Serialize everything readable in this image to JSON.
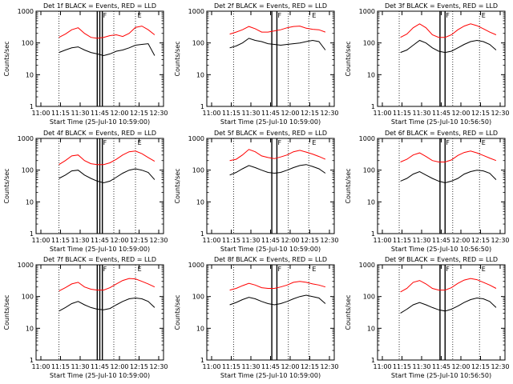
{
  "chart_data": [
    {
      "type": "line",
      "title": "Det 1f BLACK = Events, RED = LLD",
      "xlabel": "Start Time (25-Jul-10 10:59:00)",
      "ylabel": "Counts/sec",
      "yscale": "log",
      "ylim": [
        1,
        1000
      ],
      "x_ticks": [
        "11:00",
        "11:15",
        "11:30",
        "11:45",
        "12:00",
        "12:15",
        "12:30"
      ],
      "y_ticks": [
        "1",
        "10",
        "100",
        "1000"
      ],
      "dotted_vlines": [
        [
          0.18
        ],
        [
          0.61
        ],
        [
          0.78
        ]
      ],
      "solid_vlines": [
        [
          0.48
        ],
        [
          0.5
        ],
        [
          0.52
        ]
      ],
      "markers": [
        {
          "label": "F",
          "pos": 0.52
        },
        {
          "label": "E",
          "pos": 0.79
        }
      ],
      "series": [
        {
          "color": "#ff0000",
          "values": [
            150,
            190,
            260,
            300,
            200,
            150,
            140,
            150,
            170,
            180,
            160,
            200,
            310,
            340,
            260,
            180
          ]
        },
        {
          "color": "#000000",
          "values": [
            50,
            60,
            70,
            75,
            60,
            50,
            45,
            40,
            45,
            55,
            60,
            70,
            85,
            90,
            95,
            40
          ]
        }
      ]
    },
    {
      "type": "line",
      "title": "Det 2f BLACK = Events, RED = LLD",
      "xlabel": "Start Time (25-Jul-10 10:59:00)",
      "ylabel": "Counts/sec",
      "yscale": "log",
      "ylim": [
        1,
        1000
      ],
      "x_ticks": [
        "11:00",
        "11:15",
        "11:30",
        "11:45",
        "12:00",
        "12:15",
        "12:30"
      ],
      "y_ticks": [
        "1",
        "10",
        "100",
        "1000"
      ],
      "dotted_vlines": [
        [
          0.21
        ],
        [
          0.64
        ],
        [
          0.8
        ]
      ],
      "solid_vlines": [
        [
          0.51
        ],
        [
          0.55
        ]
      ],
      "markers": [
        {
          "label": "F",
          "pos": 0.55
        },
        {
          "label": "E",
          "pos": 0.82
        }
      ],
      "series": [
        {
          "color": "#ff0000",
          "values": [
            190,
            220,
            260,
            330,
            280,
            220,
            220,
            240,
            260,
            300,
            330,
            340,
            290,
            270,
            260,
            220
          ]
        },
        {
          "color": "#000000",
          "values": [
            70,
            80,
            100,
            140,
            120,
            110,
            95,
            90,
            85,
            90,
            95,
            100,
            110,
            120,
            110,
            60
          ]
        }
      ]
    },
    {
      "type": "line",
      "title": "Det 3f BLACK = Events, RED = LLD",
      "xlabel": "Start Time (25-Jul-10 10:56:50)",
      "ylabel": "Counts/sec",
      "yscale": "log",
      "ylim": [
        1,
        1000
      ],
      "x_ticks": [
        "11:00",
        "11:15",
        "11:30",
        "11:45",
        "12:00",
        "12:15",
        "12:30"
      ],
      "y_ticks": [
        "1",
        "10",
        "100",
        "1000"
      ],
      "dotted_vlines": [
        [
          0.17
        ],
        [
          0.59
        ],
        [
          0.8
        ]
      ],
      "solid_vlines": [
        [
          0.49
        ],
        [
          0.53
        ]
      ],
      "markers": [
        {
          "label": "F",
          "pos": 0.53
        },
        {
          "label": "E",
          "pos": 0.81
        }
      ],
      "series": [
        {
          "color": "#ff0000",
          "values": [
            150,
            190,
            300,
            400,
            300,
            180,
            150,
            150,
            180,
            260,
            340,
            400,
            350,
            280,
            220,
            180
          ]
        },
        {
          "color": "#000000",
          "values": [
            50,
            60,
            85,
            120,
            100,
            70,
            55,
            50,
            55,
            70,
            90,
            110,
            120,
            110,
            90,
            60
          ]
        }
      ]
    },
    {
      "type": "line",
      "title": "Det 4f BLACK = Events, RED = LLD",
      "xlabel": "Start Time (25-Jul-10 10:59:00)",
      "ylabel": "Counts/sec",
      "yscale": "log",
      "ylim": [
        1,
        1000
      ],
      "x_ticks": [
        "11:00",
        "11:15",
        "11:30",
        "11:45",
        "12:00",
        "12:15",
        "12:30"
      ],
      "y_ticks": [
        "1",
        "10",
        "100",
        "1000"
      ],
      "dotted_vlines": [
        [
          0.18
        ],
        [
          0.61
        ],
        [
          0.78
        ]
      ],
      "solid_vlines": [
        [
          0.48
        ],
        [
          0.5
        ],
        [
          0.52
        ]
      ],
      "markers": [
        {
          "label": "F",
          "pos": 0.52
        },
        {
          "label": "E",
          "pos": 0.79
        }
      ],
      "series": [
        {
          "color": "#ff0000",
          "values": [
            150,
            200,
            280,
            300,
            200,
            160,
            150,
            150,
            170,
            220,
            300,
            380,
            400,
            330,
            250,
            190
          ]
        },
        {
          "color": "#000000",
          "values": [
            55,
            70,
            95,
            100,
            70,
            55,
            45,
            40,
            45,
            60,
            80,
            100,
            110,
            100,
            85,
            50
          ]
        }
      ]
    },
    {
      "type": "line",
      "title": "Det 5f BLACK = Events, RED = LLD",
      "xlabel": "Start Time (25-Jul-10 10:59:00)",
      "ylabel": "Counts/sec",
      "yscale": "log",
      "ylim": [
        1,
        1000
      ],
      "x_ticks": [
        "11:00",
        "11:15",
        "11:30",
        "11:45",
        "12:00",
        "12:15",
        "12:30"
      ],
      "y_ticks": [
        "1",
        "10",
        "100",
        "1000"
      ],
      "dotted_vlines": [
        [
          0.21
        ],
        [
          0.64
        ],
        [
          0.8
        ]
      ],
      "solid_vlines": [
        [
          0.51
        ],
        [
          0.55
        ]
      ],
      "markers": [
        {
          "label": "F",
          "pos": 0.55
        },
        {
          "label": "E",
          "pos": 0.82
        }
      ],
      "series": [
        {
          "color": "#ff0000",
          "values": [
            200,
            220,
            300,
            450,
            380,
            280,
            250,
            230,
            260,
            300,
            380,
            420,
            370,
            320,
            270,
            220
          ]
        },
        {
          "color": "#000000",
          "values": [
            70,
            85,
            110,
            140,
            120,
            100,
            85,
            80,
            85,
            100,
            120,
            140,
            150,
            130,
            110,
            80
          ]
        }
      ]
    },
    {
      "type": "line",
      "title": "Det 6f BLACK = Events, RED = LLD",
      "xlabel": "Start Time (25-Jul-10 10:56:50)",
      "ylabel": "Counts/sec",
      "yscale": "log",
      "ylim": [
        1,
        1000
      ],
      "x_ticks": [
        "11:00",
        "11:15",
        "11:30",
        "11:45",
        "12:00",
        "12:15",
        "12:30"
      ],
      "y_ticks": [
        "1",
        "10",
        "100",
        "1000"
      ],
      "dotted_vlines": [
        [
          0.17
        ],
        [
          0.59
        ],
        [
          0.8
        ]
      ],
      "solid_vlines": [
        [
          0.49
        ],
        [
          0.53
        ]
      ],
      "markers": [
        {
          "label": "F",
          "pos": 0.53
        },
        {
          "label": "E",
          "pos": 0.81
        }
      ],
      "series": [
        {
          "color": "#ff0000",
          "values": [
            180,
            220,
            300,
            350,
            270,
            200,
            180,
            180,
            210,
            290,
            360,
            400,
            350,
            290,
            240,
            200
          ]
        },
        {
          "color": "#000000",
          "values": [
            45,
            55,
            75,
            90,
            70,
            55,
            45,
            40,
            45,
            55,
            75,
            90,
            100,
            95,
            80,
            50
          ]
        }
      ]
    },
    {
      "type": "line",
      "title": "Det 7f BLACK = Events, RED = LLD",
      "xlabel": "Start Time (25-Jul-10 10:59:00)",
      "ylabel": "Counts/sec",
      "yscale": "log",
      "ylim": [
        1,
        1000
      ],
      "x_ticks": [
        "11:00",
        "11:15",
        "11:30",
        "11:45",
        "12:00",
        "12:15",
        "12:30"
      ],
      "y_ticks": [
        "1",
        "10",
        "100",
        "1000"
      ],
      "dotted_vlines": [
        [
          0.18
        ],
        [
          0.61
        ],
        [
          0.78
        ]
      ],
      "solid_vlines": [
        [
          0.48
        ],
        [
          0.5
        ],
        [
          0.52
        ]
      ],
      "markers": [
        {
          "label": "F",
          "pos": 0.52
        },
        {
          "label": "E",
          "pos": 0.79
        }
      ],
      "series": [
        {
          "color": "#ff0000",
          "values": [
            150,
            190,
            250,
            280,
            200,
            170,
            160,
            160,
            190,
            250,
            320,
            370,
            360,
            300,
            250,
            200
          ]
        },
        {
          "color": "#000000",
          "values": [
            35,
            45,
            60,
            70,
            55,
            45,
            40,
            38,
            42,
            55,
            70,
            85,
            90,
            85,
            70,
            45
          ]
        }
      ]
    },
    {
      "type": "line",
      "title": "Det 8f BLACK = Events, RED = LLD",
      "xlabel": "Start Time (25-Jul-10 10:59:00)",
      "ylabel": "Counts/sec",
      "yscale": "log",
      "ylim": [
        1,
        1000
      ],
      "x_ticks": [
        "11:00",
        "11:15",
        "11:30",
        "11:45",
        "12:00",
        "12:15",
        "12:30"
      ],
      "y_ticks": [
        "1",
        "10",
        "100",
        "1000"
      ],
      "dotted_vlines": [
        [
          0.21
        ],
        [
          0.64
        ],
        [
          0.8
        ]
      ],
      "solid_vlines": [
        [
          0.51
        ],
        [
          0.55
        ]
      ],
      "markers": [
        {
          "label": "F",
          "pos": 0.55
        },
        {
          "label": "E",
          "pos": 0.82
        }
      ],
      "series": [
        {
          "color": "#ff0000",
          "values": [
            160,
            180,
            220,
            260,
            230,
            190,
            180,
            180,
            200,
            230,
            280,
            300,
            280,
            250,
            230,
            200
          ]
        },
        {
          "color": "#000000",
          "values": [
            55,
            65,
            80,
            95,
            85,
            70,
            60,
            55,
            60,
            70,
            85,
            100,
            110,
            100,
            90,
            60
          ]
        }
      ]
    },
    {
      "type": "line",
      "title": "Det 9f BLACK = Events, RED = LLD",
      "xlabel": "Start Time (25-Jul-10 10:56:50)",
      "ylabel": "Counts/sec",
      "yscale": "log",
      "ylim": [
        1,
        1000
      ],
      "x_ticks": [
        "11:00",
        "11:15",
        "11:30",
        "11:45",
        "12:00",
        "12:15",
        "12:30"
      ],
      "y_ticks": [
        "1",
        "10",
        "100",
        "1000"
      ],
      "dotted_vlines": [
        [
          0.17
        ],
        [
          0.59
        ],
        [
          0.8
        ]
      ],
      "solid_vlines": [
        [
          0.49
        ],
        [
          0.53
        ]
      ],
      "markers": [
        {
          "label": "F",
          "pos": 0.53
        },
        {
          "label": "E",
          "pos": 0.81
        }
      ],
      "series": [
        {
          "color": "#ff0000",
          "values": [
            140,
            180,
            280,
            320,
            250,
            180,
            160,
            160,
            190,
            260,
            330,
            370,
            340,
            280,
            230,
            180
          ]
        },
        {
          "color": "#000000",
          "values": [
            30,
            40,
            55,
            65,
            55,
            45,
            38,
            35,
            40,
            50,
            65,
            80,
            90,
            85,
            70,
            45
          ]
        }
      ]
    }
  ]
}
